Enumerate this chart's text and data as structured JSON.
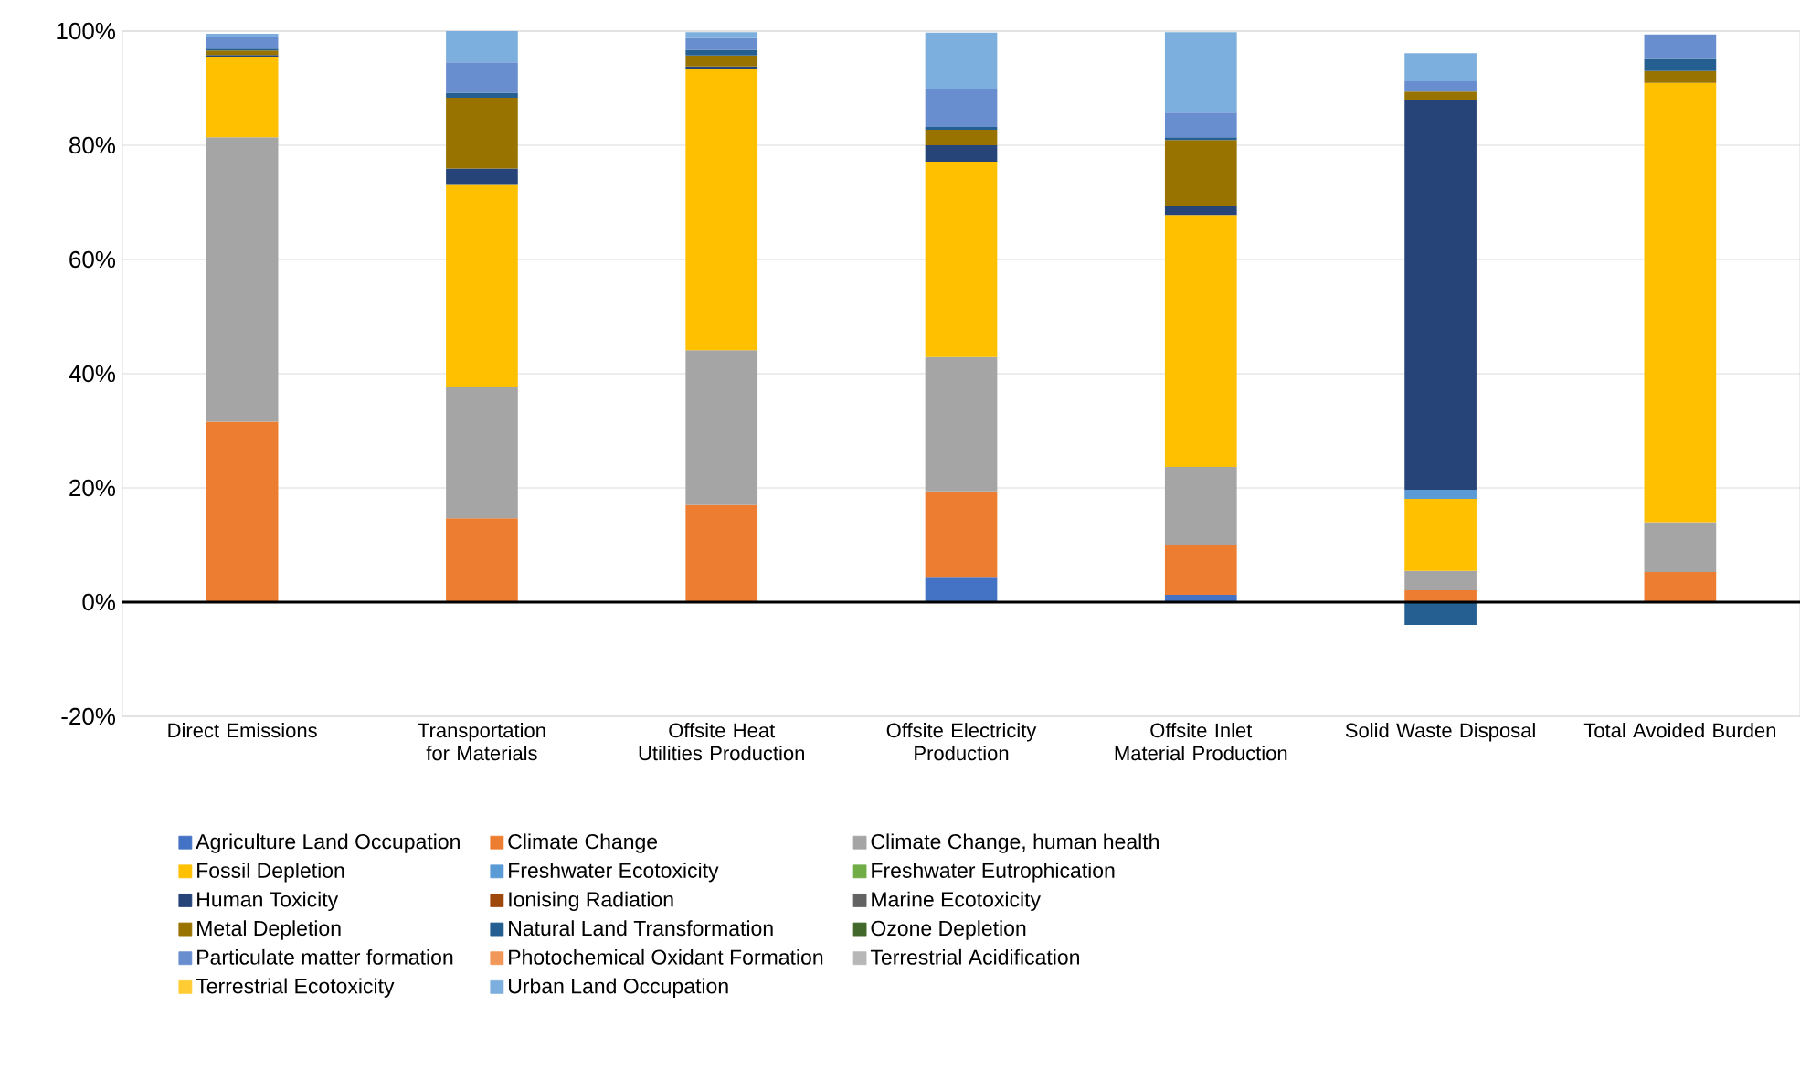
{
  "chart_data": {
    "type": "bar",
    "stacked": true,
    "grid": "y",
    "legend": "bottom",
    "categories": [
      "Direct Emissions",
      "Transportation for Materials",
      "Offsite Heat Utilities Production",
      "Offsite Electricity Production",
      "Offsite Inlet Material Production",
      "Solid Waste Disposal",
      "Total Avoided Burden"
    ],
    "ylim": [
      -20,
      100
    ],
    "yticks": [
      {
        "value": -20,
        "label": "-20%"
      },
      {
        "value": 0,
        "label": "0%"
      },
      {
        "value": 20,
        "label": "20%"
      },
      {
        "value": 40,
        "label": "40%"
      },
      {
        "value": 60,
        "label": "60%"
      },
      {
        "value": 80,
        "label": "80%"
      },
      {
        "value": 100,
        "label": "100%"
      }
    ],
    "series": [
      {
        "name": "Agriculture Land Occupation",
        "color": "#4472c4",
        "values": [
          0,
          0,
          0,
          4.3,
          1.3,
          0,
          0
        ]
      },
      {
        "name": "Climate Change",
        "color": "#ed7d31",
        "values": [
          31.6,
          14.7,
          17.0,
          15.1,
          8.7,
          2.1,
          5.3
        ]
      },
      {
        "name": "Climate Change, human health",
        "color": "#a5a5a5",
        "values": [
          49.8,
          22.9,
          27.1,
          23.5,
          13.7,
          3.4,
          8.7
        ]
      },
      {
        "name": "Fossil Depletion",
        "color": "#ffc000",
        "values": [
          14.1,
          35.6,
          49.2,
          34.2,
          44.1,
          12.6,
          76.9
        ]
      },
      {
        "name": "Freshwater Ecotoxicity",
        "color": "#5b9bd5",
        "values": [
          0,
          0,
          0,
          0,
          0,
          1.6,
          0
        ]
      },
      {
        "name": "Freshwater Eutrophication",
        "color": "#70ad47",
        "values": [
          0,
          0,
          0,
          0,
          0,
          0,
          0
        ]
      },
      {
        "name": "Human Toxicity",
        "color": "#264478",
        "values": [
          0.3,
          2.7,
          0.5,
          2.9,
          1.6,
          68.3,
          0
        ]
      },
      {
        "name": "Ionising Radiation",
        "color": "#9e480e",
        "values": [
          0,
          0,
          0,
          0,
          0,
          0,
          0
        ]
      },
      {
        "name": "Marine Ecotoxicity",
        "color": "#636363",
        "values": [
          0,
          0,
          0,
          0,
          0,
          0,
          0
        ]
      },
      {
        "name": "Metal Depletion",
        "color": "#997300",
        "values": [
          0.8,
          12.4,
          1.9,
          2.7,
          11.5,
          1.4,
          2.1
        ]
      },
      {
        "name": "Natural Land Transformation",
        "color": "#255e91",
        "values": [
          0.3,
          0.9,
          1.0,
          0.5,
          0.5,
          -4.0,
          2.1
        ]
      },
      {
        "name": "Ozone Depletion",
        "color": "#43682b",
        "values": [
          0,
          0,
          0,
          0,
          0,
          0,
          0
        ]
      },
      {
        "name": "Particulate matter formation",
        "color": "#698ed0",
        "values": [
          2.0,
          5.3,
          2.1,
          6.7,
          4.3,
          1.8,
          4.3
        ]
      },
      {
        "name": "Photochemical Oxidant Formation",
        "color": "#f1975a",
        "values": [
          0,
          0,
          0,
          0,
          0,
          0,
          0
        ]
      },
      {
        "name": "Terrestrial Acidification",
        "color": "#b7b7b7",
        "values": [
          null,
          0,
          0,
          null,
          null,
          0,
          0
        ]
      },
      {
        "name": "Terrestrial Ecotoxicity",
        "color": "#ffcd33",
        "values": [
          0,
          0,
          0,
          0,
          0,
          0,
          0
        ]
      },
      {
        "name": "Urban Land Occupation",
        "color": "#7cafdd",
        "values": [
          0.6,
          5.5,
          1.0,
          9.8,
          14.1,
          4.9,
          0
        ]
      }
    ]
  }
}
